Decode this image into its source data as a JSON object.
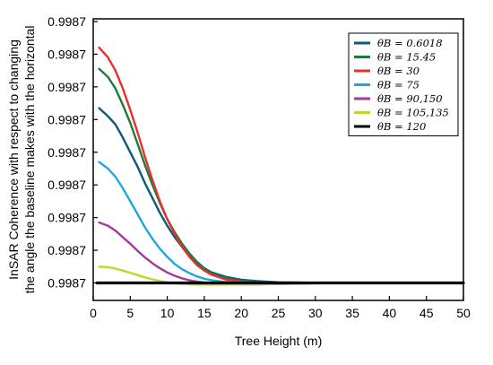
{
  "chart_data": {
    "type": "line",
    "xlabel": "Tree Height (m)",
    "ylabel_lines": [
      "InSAR Coherence with respect to changing",
      "the angle the baseline makes with the horizontal"
    ],
    "xlim": [
      0,
      50
    ],
    "ylim": [
      0,
      8
    ],
    "x_ticks": [
      "0",
      "5",
      "10",
      "15",
      "20",
      "25",
      "30",
      "35",
      "40",
      "45",
      "50"
    ],
    "y_ticks": [
      "0.9987",
      "0.9987",
      "0.9987",
      "0.9987",
      "0.9987",
      "0.9987",
      "0.9987",
      "0.9987",
      "0.9987"
    ],
    "legend_placement": "top-right",
    "grid": false,
    "series": [
      {
        "name": "θB = 0.6018",
        "color": "#0b5a7a",
        "x": [
          0.8,
          2,
          3,
          4,
          5,
          6,
          7,
          8,
          9,
          10,
          11,
          12,
          13,
          14,
          15,
          16,
          18,
          20,
          22,
          25,
          28,
          30.5
        ],
        "y": [
          5.35,
          5.1,
          4.85,
          4.45,
          4.0,
          3.55,
          3.05,
          2.6,
          2.15,
          1.75,
          1.4,
          1.1,
          0.85,
          0.6,
          0.45,
          0.32,
          0.18,
          0.1,
          0.06,
          0.02,
          0.01,
          0.0
        ]
      },
      {
        "name": "θB = 15.45",
        "color": "#1f7a3a",
        "x": [
          0.8,
          2,
          3,
          4,
          5,
          6,
          7,
          8,
          9,
          10,
          11,
          12,
          13,
          14,
          15,
          16,
          18,
          20,
          22,
          25,
          28,
          30.5
        ],
        "y": [
          6.55,
          6.3,
          5.95,
          5.45,
          4.9,
          4.25,
          3.6,
          3.0,
          2.45,
          1.95,
          1.55,
          1.2,
          0.9,
          0.65,
          0.45,
          0.3,
          0.14,
          0.06,
          0.03,
          0.01,
          0.0,
          0.0
        ]
      },
      {
        "name": "θB = 30",
        "color": "#e83030",
        "x": [
          0.8,
          2,
          3,
          4,
          5,
          6,
          7,
          8,
          9,
          10,
          11,
          12,
          13,
          14,
          15,
          16,
          18,
          20,
          22,
          25,
          28,
          30.5
        ],
        "y": [
          7.2,
          6.9,
          6.5,
          5.95,
          5.3,
          4.6,
          3.85,
          3.15,
          2.5,
          1.95,
          1.5,
          1.1,
          0.8,
          0.55,
          0.38,
          0.25,
          0.1,
          0.04,
          0.01,
          0.0,
          0.0,
          0.0
        ]
      },
      {
        "name": "θB = 75",
        "color": "#1ea8dc",
        "x": [
          0.8,
          2,
          3,
          4,
          5,
          6,
          7,
          8,
          9,
          10,
          11,
          12,
          13,
          14,
          15,
          16,
          18,
          20,
          22,
          25,
          28,
          30.5
        ],
        "y": [
          3.7,
          3.5,
          3.25,
          2.9,
          2.5,
          2.1,
          1.7,
          1.35,
          1.05,
          0.8,
          0.58,
          0.42,
          0.3,
          0.2,
          0.13,
          0.08,
          0.03,
          0.0,
          -0.02,
          -0.03,
          -0.02,
          0.0
        ]
      },
      {
        "name": "θB = 90,150",
        "color": "#a23a9e",
        "x": [
          0.8,
          2,
          3,
          4,
          5,
          6,
          7,
          8,
          9,
          10,
          11,
          12,
          13,
          14,
          15,
          16,
          18,
          20,
          22,
          25,
          28,
          30.5
        ],
        "y": [
          1.85,
          1.75,
          1.6,
          1.4,
          1.2,
          0.98,
          0.78,
          0.6,
          0.45,
          0.32,
          0.22,
          0.14,
          0.08,
          0.04,
          0.01,
          -0.01,
          -0.03,
          -0.04,
          -0.04,
          -0.03,
          -0.02,
          0.0
        ]
      },
      {
        "name": "θB = 105,135",
        "color": "#c4d62c",
        "x": [
          0.8,
          2,
          3,
          4,
          5,
          6,
          7,
          8,
          9,
          10,
          11,
          12,
          13,
          14,
          15,
          16,
          18,
          20,
          22,
          25,
          28,
          30.5
        ],
        "y": [
          0.5,
          0.48,
          0.44,
          0.38,
          0.31,
          0.24,
          0.17,
          0.11,
          0.06,
          0.02,
          -0.01,
          -0.03,
          -0.04,
          -0.05,
          -0.05,
          -0.05,
          -0.05,
          -0.04,
          -0.04,
          -0.03,
          -0.02,
          -0.01
        ]
      },
      {
        "name": "θB = 120",
        "color": "#000000",
        "x": [
          0.5,
          50
        ],
        "y": [
          0.0,
          0.0
        ]
      }
    ]
  }
}
